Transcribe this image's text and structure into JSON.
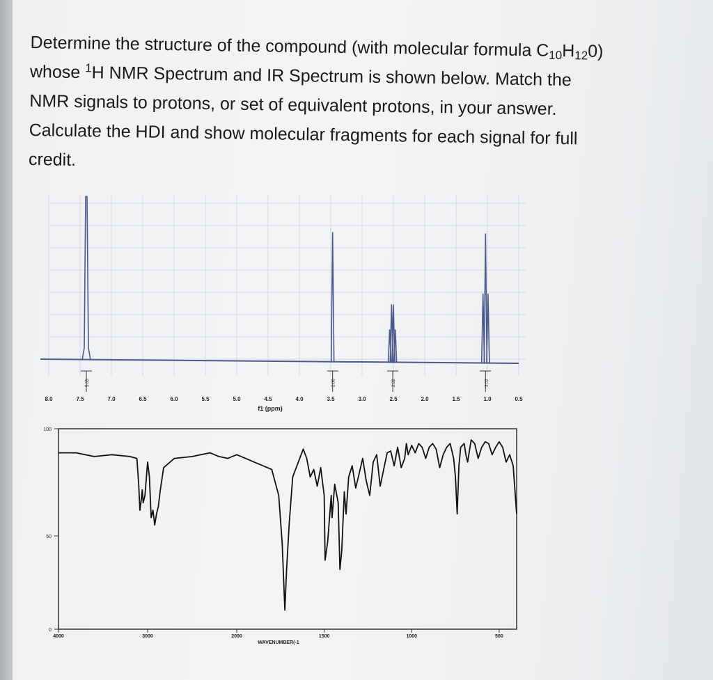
{
  "question": {
    "line1_prefix": "Determine the structure of the compound (with molecular formula C",
    "sub_10": "10",
    "h": "H",
    "sub_12": "12",
    "line1_suffix": "0)",
    "line2_prefix": "whose ",
    "sup_1": "1",
    "line2_suffix": "H NMR Spectrum and IR Spectrum is shown below.  Match the",
    "line3": "NMR signals to protons, or set of equivalent protons, in your answer.",
    "line4": "Calculate the HDI and show molecular fragments for each signal for full",
    "line5": "credit."
  },
  "colors": {
    "nmr_trace": "#4a5a8c",
    "ir_trace": "#111111",
    "grid": "#d5d9e4",
    "text": "#1a1a1a"
  },
  "chart_data": [
    {
      "type": "line",
      "name": "1H NMR spectrum",
      "xlabel": "f1 (ppm)",
      "xlim": [
        8.0,
        0.5
      ],
      "x_ticks": [
        "8.0",
        "7.5",
        "7.0",
        "6.5",
        "6.0",
        "5.5",
        "5.0",
        "4.5",
        "4.0",
        "3.5",
        "3.0",
        "2.5",
        "2.0",
        "1.5",
        "1.0",
        "0.5"
      ],
      "grid": true,
      "peaks": [
        {
          "ppm": [
            7.4
          ],
          "heights": [
            0.98
          ]
        },
        {
          "ppm": [
            3.47
          ],
          "heights": [
            0.78
          ]
        },
        {
          "ppm": [
            2.56,
            2.53,
            2.5,
            2.47
          ],
          "heights": [
            0.2,
            0.35,
            0.35,
            0.2
          ]
        },
        {
          "ppm": [
            1.07,
            1.03,
            0.99
          ],
          "heights": [
            0.42,
            0.78,
            0.42
          ]
        }
      ],
      "integrals": [
        {
          "ppm": 7.4,
          "label": "5.05"
        },
        {
          "ppm": 3.47,
          "label": "2.00"
        },
        {
          "ppm": 2.51,
          "label": "2.02"
        },
        {
          "ppm": 1.03,
          "label": "3.02"
        }
      ]
    },
    {
      "type": "line",
      "name": "IR spectrum",
      "xlabel": "WAVENUMBER(cm-1)",
      "xlabel_display": "WAVENUMBER(-1",
      "ylabel": "",
      "xlim": [
        4000,
        400
      ],
      "ylim": [
        0,
        100
      ],
      "x_ticks": [
        "4000",
        "3000",
        "2000",
        "1500",
        "1000",
        "500"
      ],
      "x_tick_positions": [
        4000,
        3000,
        2000,
        1500,
        1000,
        500
      ],
      "y_ticks": [
        "100",
        "50",
        "0"
      ],
      "x": [
        4000,
        3800,
        3600,
        3400,
        3200,
        3120,
        3100,
        3087,
        3070,
        3060,
        3050,
        3030,
        3000,
        2980,
        2960,
        2940,
        2920,
        2900,
        2880,
        2860,
        2820,
        2700,
        2500,
        2300,
        2200,
        2100,
        2000,
        1950,
        1900,
        1850,
        1800,
        1760,
        1740,
        1725,
        1715,
        1700,
        1680,
        1620,
        1600,
        1580,
        1560,
        1540,
        1520,
        1500,
        1495,
        1480,
        1460,
        1455,
        1440,
        1420,
        1410,
        1400,
        1385,
        1375,
        1360,
        1340,
        1320,
        1300,
        1280,
        1260,
        1240,
        1220,
        1200,
        1180,
        1160,
        1140,
        1120,
        1100,
        1080,
        1060,
        1040,
        1030,
        1020,
        1000,
        980,
        960,
        940,
        920,
        900,
        880,
        860,
        840,
        820,
        800,
        780,
        760,
        750,
        740,
        730,
        720,
        700,
        690,
        680,
        660,
        640,
        620,
        600,
        580,
        560,
        540,
        520,
        500,
        480,
        460,
        440,
        420,
        400
      ],
      "y": [
        93,
        93,
        91,
        92,
        91,
        90,
        76,
        62,
        68,
        73,
        66,
        70,
        88,
        80,
        58,
        62,
        54,
        60,
        64,
        72,
        85,
        90,
        91,
        93,
        91,
        90,
        92,
        90,
        88,
        86,
        84,
        70,
        44,
        8,
        30,
        55,
        80,
        95,
        90,
        80,
        84,
        75,
        85,
        70,
        35,
        45,
        70,
        58,
        76,
        66,
        30,
        40,
        72,
        60,
        80,
        86,
        74,
        82,
        90,
        78,
        70,
        88,
        92,
        75,
        84,
        93,
        94,
        86,
        96,
        85,
        90,
        98,
        92,
        97,
        93,
        98,
        96,
        90,
        96,
        98,
        95,
        85,
        92,
        96,
        98,
        90,
        80,
        60,
        86,
        96,
        98,
        92,
        88,
        100,
        98,
        90,
        96,
        99,
        98,
        92,
        96,
        99,
        96,
        88,
        92,
        86,
        60
      ]
    }
  ]
}
